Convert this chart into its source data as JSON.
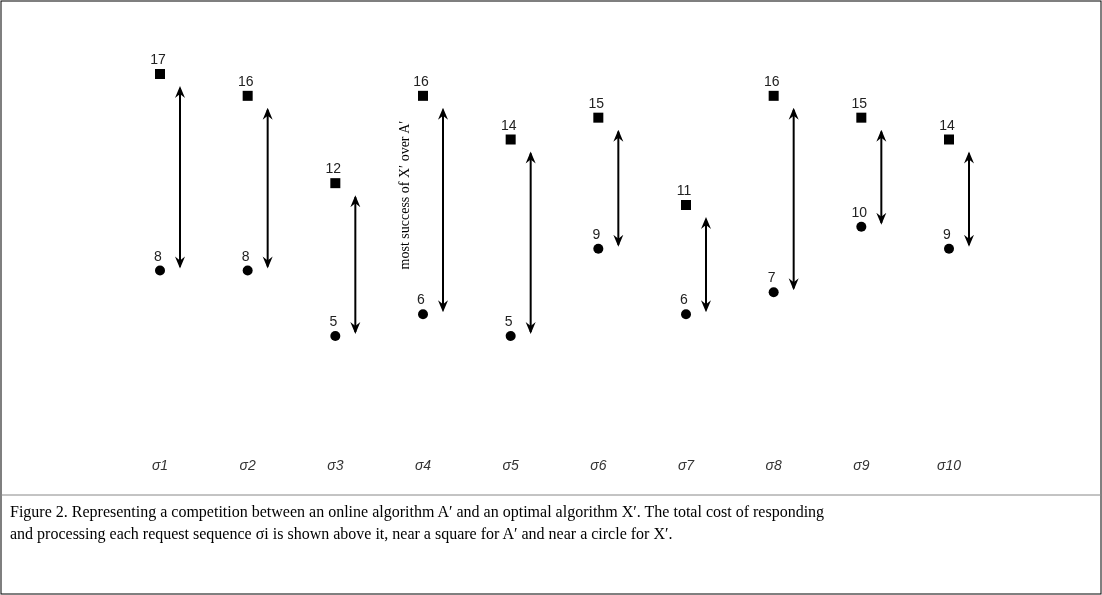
{
  "chart_data": {
    "type": "scatter",
    "categories": [
      "σ1",
      "σ2",
      "σ3",
      "σ4",
      "σ5",
      "σ6",
      "σ7",
      "σ8",
      "σ9",
      "σ10"
    ],
    "series": [
      {
        "color": "#000000",
        "marker": "square",
        "values": [
          17,
          16,
          12,
          16,
          14,
          15,
          11,
          16,
          15,
          14
        ]
      },
      {
        "color": "#000000",
        "marker": "circle",
        "values": [
          8,
          8,
          5,
          6,
          5,
          9,
          6,
          7,
          10,
          9
        ]
      }
    ],
    "tick_labels": "x",
    "data_labels": true,
    "annotations": [
      "most success of X′ over A′",
      "Figure 2. Representing a competition between an online algorithm A′ and an optimal algorithm X′. The total cost of responding and processing each request sequence σi is shown above it, near a square for A′ and near a circle for X′."
    ]
  }
}
